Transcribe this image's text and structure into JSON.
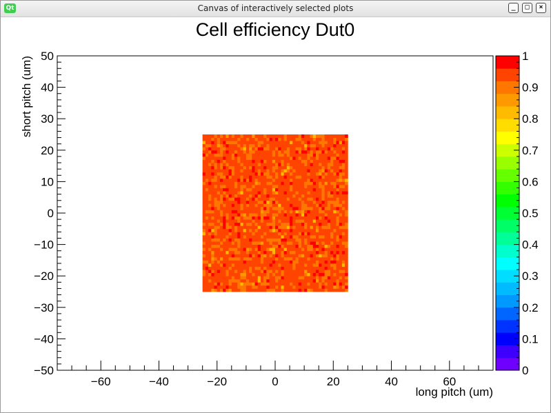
{
  "window": {
    "title": "Canvas of interactively selected plots",
    "logo": "Qt",
    "buttons": {
      "minimize": "_",
      "maximize": "□",
      "close": "×"
    }
  },
  "chart_data": {
    "type": "heatmap",
    "title": "Cell efficiency Dut0",
    "xlabel": "long pitch (um)",
    "ylabel": "short pitch (um)",
    "xlim": [
      -75,
      75
    ],
    "ylim": [
      -50,
      50
    ],
    "zlim": [
      0,
      1
    ],
    "x_ticks": [
      -60,
      -40,
      -20,
      0,
      20,
      40,
      60
    ],
    "y_ticks": [
      -50,
      -40,
      -30,
      -20,
      -10,
      0,
      10,
      20,
      30,
      40,
      50
    ],
    "z_ticks": [
      0,
      0.1,
      0.2,
      0.3,
      0.4,
      0.5,
      0.6,
      0.7,
      0.8,
      0.9,
      1
    ],
    "populated_region": {
      "x": [
        -25,
        25
      ],
      "y": [
        -25,
        25
      ]
    },
    "bin_size": 1,
    "typical_value": 0.93,
    "value_range": [
      0.75,
      1.0
    ],
    "grid": false,
    "palette_colors": [
      "#6f00ff",
      "#3d00ff",
      "#0000ff",
      "#0033ff",
      "#0066ff",
      "#0099ff",
      "#00bbff",
      "#00ddff",
      "#00ffff",
      "#00ffcc",
      "#00ff99",
      "#00ff66",
      "#00ff33",
      "#00ff00",
      "#33ff00",
      "#66ff00",
      "#99ff00",
      "#ccff00",
      "#ffff00",
      "#ffdd00",
      "#ffbb00",
      "#ff9900",
      "#ff7700",
      "#ff4400",
      "#ff0000"
    ]
  }
}
